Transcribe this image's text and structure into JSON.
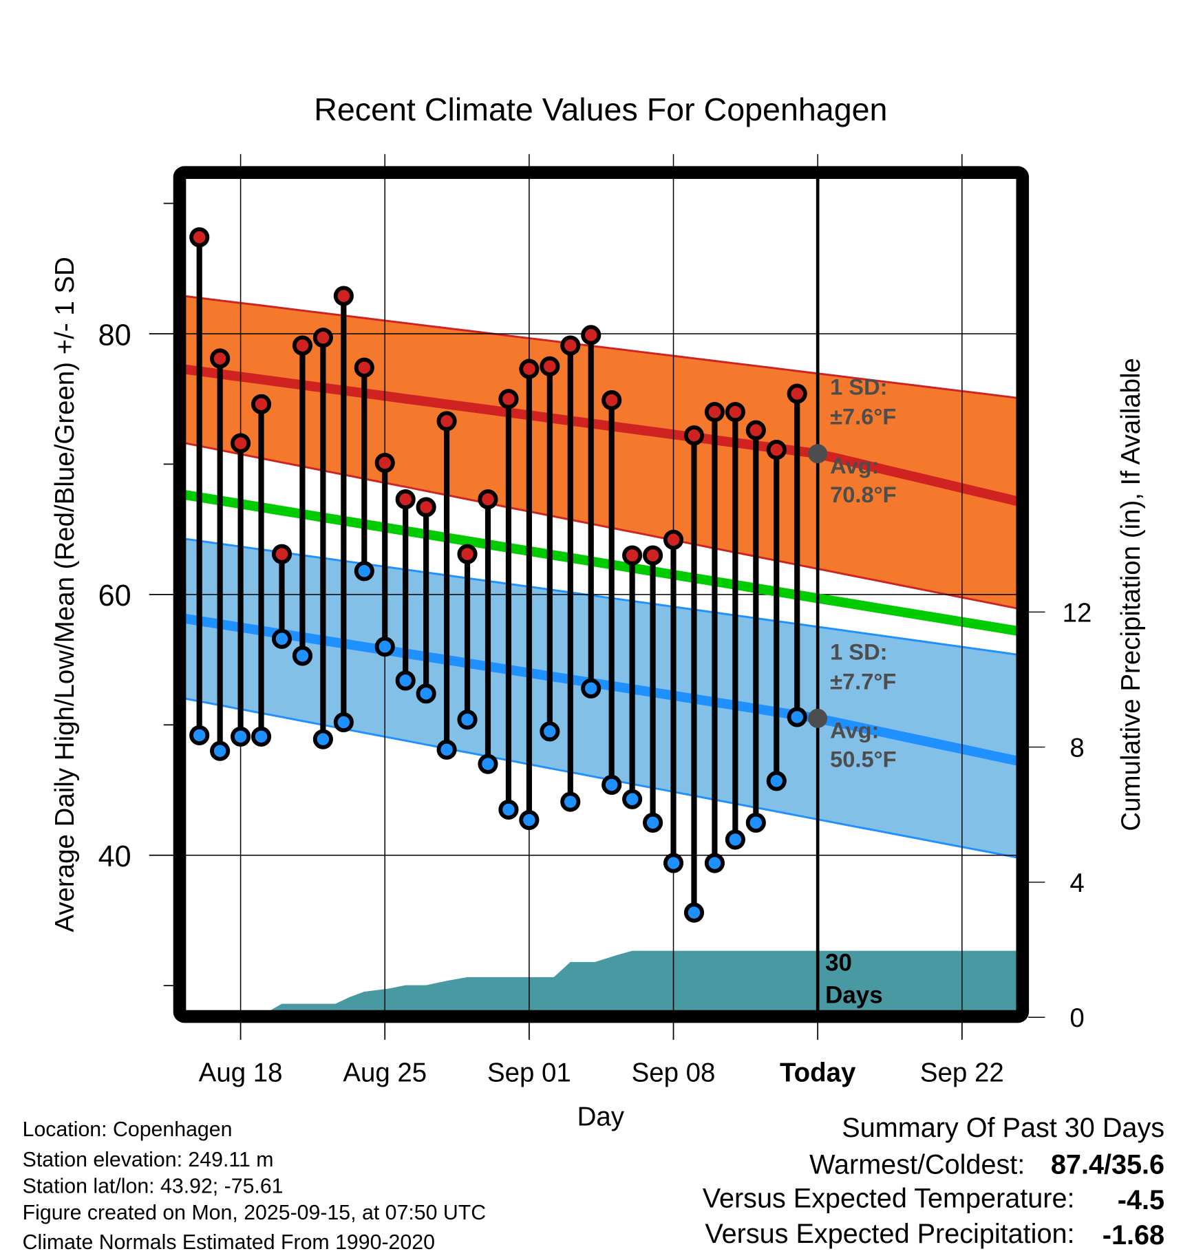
{
  "chart_data": {
    "type": "line",
    "title": "Recent Climate Values For Copenhagen",
    "xlabel": "Day",
    "ylabel": "Average Daily High/Low/Mean (Red/Blue/Green) +/- 1 SD",
    "y2label": "Cumulative Precipitation (in), If Available",
    "xlim": [
      "Aug 14.7",
      "Sep 25.1"
    ],
    "ylim": [
      28.1,
      92.0
    ],
    "y2lim": [
      0.19,
      24.8
    ],
    "grid": true,
    "x_ticks": [
      {
        "day": 18,
        "label": "Aug 18"
      },
      {
        "day": 25,
        "label": "Aug 25"
      },
      {
        "day": 32,
        "label": "Sep 01"
      },
      {
        "day": 39,
        "label": "Sep 08"
      },
      {
        "day": 46,
        "label": "Today"
      },
      {
        "day": 53,
        "label": "Sep 22"
      }
    ],
    "y_ticks": [
      40,
      60,
      80
    ],
    "y_minor_ticks": [
      30,
      50,
      70,
      90
    ],
    "y2_ticks": [
      0,
      4,
      8,
      12
    ],
    "day_index_note": "day numbers count from Aug 0 (Aug 18 = 18, Sep 01 = 32)",
    "days": [
      16,
      17,
      18,
      19,
      20,
      21,
      22,
      23,
      24,
      25,
      26,
      27,
      28,
      29,
      30,
      31,
      32,
      33,
      34,
      35,
      36,
      37,
      38,
      39,
      40,
      41,
      42,
      43,
      44,
      45
    ],
    "series": [
      {
        "name": "Daily High",
        "color": "#d12222",
        "values": [
          87.4,
          78.1,
          71.6,
          74.6,
          63.1,
          79.1,
          79.7,
          82.9,
          77.4,
          70.1,
          67.3,
          66.7,
          73.3,
          63.1,
          67.3,
          75.0,
          77.3,
          77.5,
          79.1,
          79.9,
          74.9,
          63.0,
          63.0,
          64.2,
          72.2,
          74.0,
          74.0,
          72.6,
          71.1,
          75.4
        ]
      },
      {
        "name": "Daily Low",
        "color": "#1e90ff",
        "values": [
          49.2,
          48.0,
          49.1,
          49.1,
          56.6,
          55.3,
          48.9,
          50.2,
          61.8,
          56.0,
          53.4,
          52.4,
          48.1,
          50.4,
          47.0,
          43.5,
          42.7,
          49.5,
          44.1,
          52.8,
          45.4,
          44.3,
          42.5,
          39.4,
          35.6,
          39.4,
          41.2,
          42.5,
          45.7,
          50.6
        ]
      }
    ],
    "normals": {
      "x_range": [
        14.7,
        56.1
      ],
      "high_mean": {
        "color": "#d12222",
        "values": [
          77.4,
          70.8,
          67.0
        ],
        "at": [
          14.7,
          46,
          56.1
        ]
      },
      "high_upper": {
        "values": [
          83.0,
          75.0
        ],
        "at": [
          14.7,
          56.1
        ]
      },
      "high_lower": {
        "values": [
          71.8,
          58.8
        ],
        "at": [
          14.7,
          56.1
        ]
      },
      "mean": {
        "color": "#00cc00",
        "values": [
          67.8,
          57.1
        ],
        "at": [
          14.7,
          56.1
        ]
      },
      "low_mean": {
        "color": "#1e90ff",
        "values": [
          58.3,
          50.5,
          47.1
        ],
        "at": [
          14.7,
          46,
          56.1
        ]
      },
      "low_upper": {
        "values": [
          64.4,
          55.3
        ],
        "at": [
          14.7,
          56.1
        ]
      },
      "low_lower": {
        "values": [
          52.2,
          39.7
        ],
        "at": [
          14.7,
          56.1
        ]
      },
      "high_band_color": "#f4792c",
      "low_band_color": "#82c0e7"
    },
    "precipitation": {
      "color": "#4899a2",
      "points": [
        [
          14.7,
          0.19
        ],
        [
          19.4,
          0.19
        ],
        [
          20.0,
          0.4
        ],
        [
          22.6,
          0.4
        ],
        [
          23.3,
          0.6
        ],
        [
          24.0,
          0.76
        ],
        [
          25.2,
          0.85
        ],
        [
          26.0,
          0.95
        ],
        [
          27.0,
          0.95
        ],
        [
          28.0,
          1.08
        ],
        [
          29.0,
          1.19
        ],
        [
          33.2,
          1.19
        ],
        [
          34.0,
          1.64
        ],
        [
          35.2,
          1.64
        ],
        [
          36.3,
          1.85
        ],
        [
          37.0,
          1.97
        ],
        [
          56.1,
          1.97
        ]
      ]
    },
    "annotations": {
      "high_sd": "1 SD:",
      "high_sd_value": "±7.6°F",
      "high_avg": "Avg:",
      "high_avg_value": "70.8°F",
      "low_sd": "1 SD:",
      "low_sd_value": "±7.7°F",
      "low_avg": "Avg:",
      "low_avg_value": "50.5°F",
      "precip_days_1": "30",
      "precip_days_2": "Days"
    }
  },
  "footer": {
    "location": "Location: Copenhagen",
    "elevation": "Station elevation: 249.11 m",
    "latlon": "Station lat/lon: 43.92; -75.61",
    "created": "Figure created on Mon, 2025-09-15, at 07:50 UTC",
    "normals": "Climate Normals Estimated From 1990-2020"
  },
  "summary": {
    "title": "Summary Of Past 30 Days",
    "warm_cold_label": "Warmest/Coldest:",
    "warm_cold_value": "87.4/35.6",
    "temp_label": "Versus Expected Temperature:",
    "temp_value": "-4.5",
    "temp_color": "#2b95f0",
    "precip_label": "Versus Expected Precipitation:",
    "precip_value": "-1.68",
    "precip_color": "#a0522d"
  }
}
